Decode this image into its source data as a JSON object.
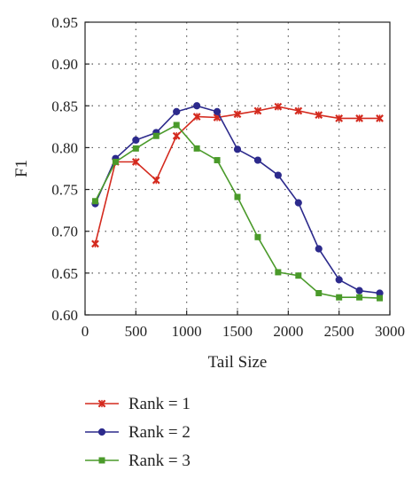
{
  "chart_data": {
    "type": "line",
    "xlabel": "Tail Size",
    "ylabel": "F1",
    "xlim": [
      0,
      3000
    ],
    "ylim": [
      0.6,
      0.95
    ],
    "xticks": [
      0,
      500,
      1000,
      1500,
      2000,
      2500,
      3000
    ],
    "yticks": [
      0.6,
      0.65,
      0.7,
      0.75,
      0.8,
      0.85,
      0.9,
      0.95
    ],
    "xtick_labels": [
      "0",
      "500",
      "1000",
      "1500",
      "2000",
      "2500",
      "3000"
    ],
    "ytick_labels": [
      "0.60",
      "0.65",
      "0.70",
      "0.75",
      "0.80",
      "0.85",
      "0.90",
      "0.95"
    ],
    "grid": true,
    "legend_position": "below",
    "series": [
      {
        "name": "Rank = 1",
        "color": "#d42a1e",
        "marker": "x-star",
        "x": [
          100,
          300,
          500,
          700,
          900,
          1100,
          1300,
          1500,
          1700,
          1900,
          2100,
          2300,
          2500,
          2700,
          2900
        ],
        "y": [
          0.685,
          0.783,
          0.783,
          0.761,
          0.814,
          0.837,
          0.836,
          0.84,
          0.844,
          0.849,
          0.844,
          0.839,
          0.835,
          0.835,
          0.835
        ]
      },
      {
        "name": "Rank = 2",
        "color": "#2c2a8c",
        "marker": "circle",
        "x": [
          100,
          300,
          500,
          700,
          900,
          1100,
          1300,
          1500,
          1700,
          1900,
          2100,
          2300,
          2500,
          2700,
          2900
        ],
        "y": [
          0.733,
          0.787,
          0.809,
          0.818,
          0.843,
          0.85,
          0.843,
          0.798,
          0.785,
          0.767,
          0.734,
          0.679,
          0.642,
          0.629,
          0.626
        ]
      },
      {
        "name": "Rank = 3",
        "color": "#4a9a2a",
        "marker": "square",
        "x": [
          100,
          300,
          500,
          700,
          900,
          1100,
          1300,
          1500,
          1700,
          1900,
          2100,
          2300,
          2500,
          2700,
          2900
        ],
        "y": [
          0.736,
          0.783,
          0.799,
          0.814,
          0.827,
          0.799,
          0.785,
          0.741,
          0.693,
          0.651,
          0.647,
          0.626,
          0.621,
          0.621,
          0.62
        ]
      }
    ]
  }
}
